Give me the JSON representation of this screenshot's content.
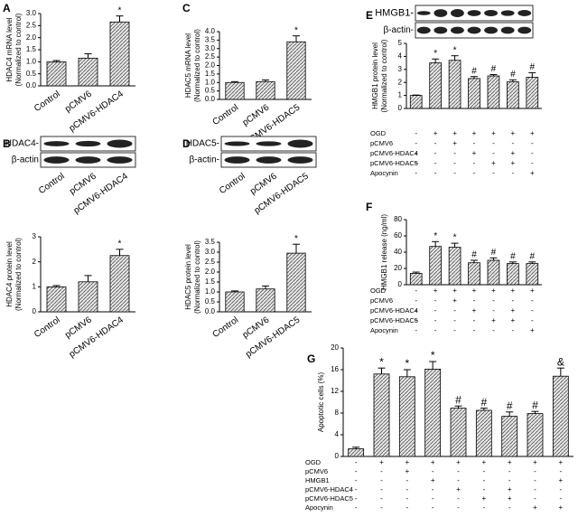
{
  "chart_data": [
    {
      "type": "bar",
      "panel": "A",
      "ylabel": [
        "HDAC4 mRNA level",
        "(Normalized to control)"
      ],
      "categories": [
        "Control",
        "pCMV6",
        "pCMV6-HDAC4"
      ],
      "values": [
        1.0,
        1.15,
        2.65
      ],
      "errors": [
        0.05,
        0.18,
        0.25
      ],
      "annotations": [
        null,
        null,
        "*"
      ],
      "color": "#555555",
      "ylim": [
        0,
        3
      ],
      "yticks": [
        {
          "value": 0,
          "label": "0.0"
        },
        0.5,
        {
          "value": 1,
          "label": "1.0"
        },
        1.5,
        {
          "value": 2,
          "label": "2.0"
        },
        2.5,
        {
          "value": 3,
          "label": "3.0"
        }
      ]
    },
    {
      "type": "bar",
      "panel": "B",
      "ylabel": [
        "HDAC4 protein level",
        "(Normalized to control)"
      ],
      "blot_labels": [
        "HDAC4-",
        "β-actin"
      ],
      "blot_lanes": [
        "Control",
        "pCMV6",
        "pCMV6-HDAC4"
      ],
      "categories": [
        "Control",
        "pCMV6",
        "pCMV6-HDAC4"
      ],
      "values": [
        1.0,
        1.2,
        2.25
      ],
      "errors": [
        0.05,
        0.25,
        0.25
      ],
      "annotations": [
        null,
        null,
        "*"
      ],
      "color": "#555555",
      "ylim": [
        0,
        3
      ],
      "yticks": [
        0,
        1,
        2,
        3
      ]
    },
    {
      "type": "bar",
      "panel": "C",
      "ylabel": [
        "HDAC5 mRNA level",
        "(Normalized to control)"
      ],
      "categories": [
        "Control",
        "pCMV6",
        "pCMV6-HDAC5"
      ],
      "values": [
        1.0,
        1.05,
        3.4
      ],
      "errors": [
        0.05,
        0.1,
        0.35
      ],
      "annotations": [
        null,
        null,
        "*"
      ],
      "color": "#555555",
      "ylim": [
        0,
        4
      ],
      "yticks": [
        {
          "value": 0,
          "label": "0.0"
        },
        0.5,
        {
          "value": 1,
          "label": "1.0"
        },
        1.5,
        {
          "value": 2,
          "label": "2.0"
        },
        2.5,
        {
          "value": 3,
          "label": "3.0"
        },
        3.5,
        {
          "value": 4,
          "label": "4.0"
        }
      ]
    },
    {
      "type": "bar",
      "panel": "D",
      "ylabel": [
        "HDAC5 protein level",
        "(Normalized to control)"
      ],
      "blot_labels": [
        "HDAC5-",
        "β-actin-"
      ],
      "blot_lanes": [
        "Control",
        "pCMV6",
        "pCMV6-HDAC5"
      ],
      "categories": [
        "Control",
        "pCMV6",
        "pCMV6-HDAC5"
      ],
      "values": [
        1.0,
        1.15,
        2.95
      ],
      "errors": [
        0.05,
        0.15,
        0.45
      ],
      "annotations": [
        null,
        null,
        "*"
      ],
      "color": "#555555",
      "ylim": [
        0,
        3.5
      ],
      "yticks": [
        {
          "value": 0,
          "label": "0.0"
        },
        0.5,
        {
          "value": 1,
          "label": "1.0"
        },
        1.5,
        {
          "value": 2,
          "label": "2.0"
        },
        2.5,
        {
          "value": 3,
          "label": "3.0"
        },
        3.5
      ]
    },
    {
      "type": "bar",
      "panel": "E",
      "ylabel": [
        "HMGB1 protein level",
        "(Normalized to control)"
      ],
      "blot_labels": [
        "HMGB1-",
        "β-actin-"
      ],
      "values": [
        1.0,
        3.5,
        3.7,
        2.3,
        2.5,
        2.05,
        2.4
      ],
      "errors": [
        0.03,
        0.3,
        0.35,
        0.15,
        0.1,
        0.15,
        0.35
      ],
      "annotations": [
        null,
        "*",
        "*",
        "#",
        "#",
        "#",
        "#"
      ],
      "color": "#555555",
      "ylim": [
        0,
        5
      ],
      "yticks": [
        0,
        1,
        2,
        3,
        4,
        5
      ],
      "conditions": [
        {
          "label": "OGD",
          "signs": [
            "-",
            "+",
            "+",
            "+",
            "+",
            "+",
            "+"
          ]
        },
        {
          "label": "pCMV6",
          "signs": [
            "-",
            "-",
            "+",
            "-",
            "-",
            "-",
            "-"
          ]
        },
        {
          "label": "pCMV6-HDAC4",
          "signs": [
            "-",
            "-",
            "-",
            "+",
            "-",
            "+",
            "-"
          ]
        },
        {
          "label": "pCMV6-HDAC5",
          "signs": [
            "-",
            "-",
            "-",
            "-",
            "+",
            "+",
            "-"
          ]
        },
        {
          "label": "Apocynin",
          "signs": [
            "-",
            "-",
            "-",
            "-",
            "-",
            "-",
            "+"
          ]
        }
      ]
    },
    {
      "type": "bar",
      "panel": "F",
      "ylabel": [
        "HMGB1 release (ng/ml)"
      ],
      "values": [
        14,
        47,
        46,
        27,
        30,
        26,
        26
      ],
      "errors": [
        1.5,
        6,
        5,
        3,
        3,
        2,
        2
      ],
      "annotations": [
        null,
        "*",
        "*",
        "#",
        "#",
        "#",
        "#"
      ],
      "color": "#555555",
      "ylim": [
        0,
        80
      ],
      "yticks": [
        0,
        20,
        40,
        60,
        80
      ],
      "conditions": [
        {
          "label": "OGD",
          "signs": [
            "-",
            "+",
            "+",
            "+",
            "+",
            "+",
            "+"
          ]
        },
        {
          "label": "pCMV6",
          "signs": [
            "-",
            "-",
            "+",
            "-",
            "-",
            "-",
            "-"
          ]
        },
        {
          "label": "pCMV6-HDAC4",
          "signs": [
            "-",
            "-",
            "-",
            "+",
            "-",
            "+",
            "-"
          ]
        },
        {
          "label": "pCMV6-HDAC5",
          "signs": [
            "-",
            "-",
            "-",
            "-",
            "+",
            "+",
            "-"
          ]
        },
        {
          "label": "Apocynin",
          "signs": [
            "-",
            "-",
            "-",
            "-",
            "-",
            "-",
            "+"
          ]
        }
      ]
    },
    {
      "type": "bar",
      "panel": "G",
      "ylabel": [
        "Apoptotic cells (%)"
      ],
      "values": [
        1.4,
        15.2,
        14.7,
        16.1,
        8.9,
        8.5,
        7.4,
        7.9,
        14.8
      ],
      "errors": [
        0.3,
        1.1,
        1.3,
        1.4,
        0.4,
        0.4,
        0.8,
        0.4,
        1.5
      ],
      "annotations": [
        null,
        "*",
        "*",
        "*",
        "#",
        "#",
        "#",
        "#",
        "&"
      ],
      "color": "#555555",
      "ylim": [
        0,
        20
      ],
      "yticks": [
        0,
        4,
        8,
        12,
        16,
        20
      ],
      "conditions": [
        {
          "label": "OGD",
          "signs": [
            "-",
            "+",
            "+",
            "+",
            "+",
            "+",
            "+",
            "+",
            "+"
          ]
        },
        {
          "label": "pCMV6",
          "signs": [
            "-",
            "-",
            "+",
            "-",
            "-",
            "-",
            "-",
            "-",
            "-"
          ]
        },
        {
          "label": "HMGB1",
          "signs": [
            "-",
            "-",
            "-",
            "+",
            "-",
            "-",
            "-",
            "-",
            "+"
          ]
        },
        {
          "label": "pCMV6-HDAC4",
          "signs": [
            "-",
            "-",
            "-",
            "-",
            "+",
            "-",
            "+",
            "-",
            "-"
          ]
        },
        {
          "label": "pCMV6-HDAC5",
          "signs": [
            "-",
            "-",
            "-",
            "-",
            "-",
            "+",
            "+",
            "-",
            "-"
          ]
        },
        {
          "label": "Apocynin",
          "signs": [
            "-",
            "-",
            "-",
            "-",
            "-",
            "-",
            "-",
            "+",
            "+"
          ]
        }
      ]
    }
  ]
}
